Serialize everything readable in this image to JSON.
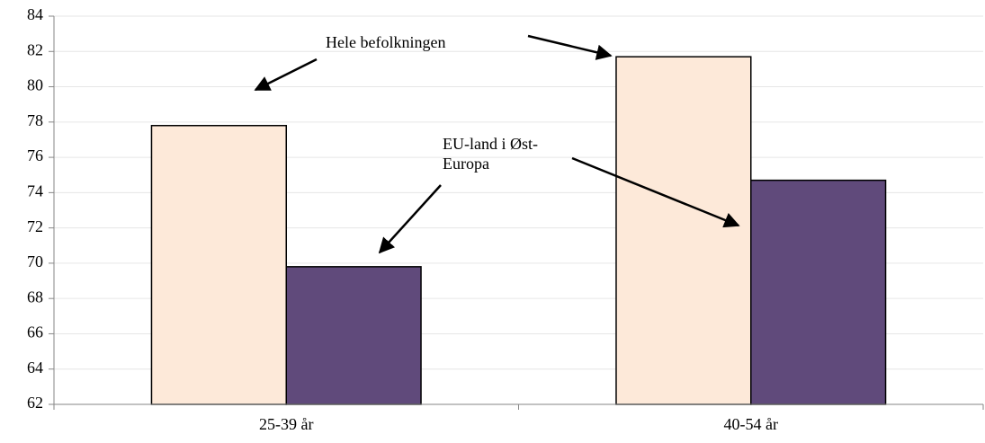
{
  "chart_data": {
    "type": "bar",
    "categories": [
      "25-39 år",
      "40-54 år"
    ],
    "series": [
      {
        "name": "Hele befolkningen",
        "color": "#fde9d9",
        "values": [
          77.8,
          81.7
        ]
      },
      {
        "name": "EU-land i Øst-Europa",
        "color": "#604a7b",
        "values": [
          69.8,
          74.7
        ]
      }
    ],
    "ylim": [
      62,
      84
    ],
    "yticks": [
      62,
      64,
      66,
      68,
      70,
      72,
      74,
      76,
      78,
      80,
      82,
      84
    ],
    "grid": true
  }
}
